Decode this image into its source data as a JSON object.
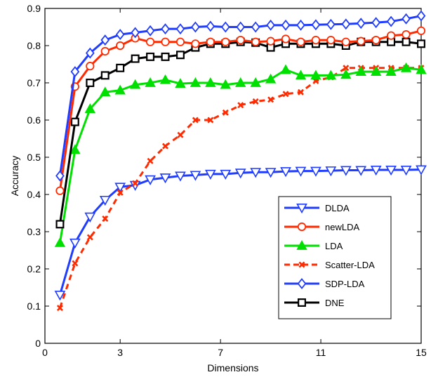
{
  "chart_data": {
    "type": "line",
    "title": "",
    "xlabel": "Dimensions",
    "ylabel": "Accuracy",
    "xlim": [
      0,
      15
    ],
    "ylim": [
      0,
      0.9
    ],
    "xticks": [
      0,
      3,
      7,
      11,
      15
    ],
    "yticks": [
      0,
      0.1,
      0.2,
      0.3,
      0.4,
      0.5,
      0.6,
      0.7,
      0.8,
      0.9
    ],
    "grid": false,
    "legend_position": "lower-right",
    "x": [
      0.6,
      1.2,
      1.8,
      2.4,
      3.0,
      3.6,
      4.2,
      4.8,
      5.4,
      6.0,
      6.6,
      7.2,
      7.8,
      8.4,
      9.0,
      9.6,
      10.2,
      10.8,
      11.4,
      12.0,
      12.6,
      13.2,
      13.8,
      14.4,
      15.0
    ],
    "series": [
      {
        "name": "DLDA",
        "color": "#1f3cff",
        "line_style": "solid",
        "marker": "triangle-down",
        "marker_fill": "#1f3cff",
        "values": [
          0.13,
          0.27,
          0.34,
          0.385,
          0.42,
          0.425,
          0.44,
          0.445,
          0.45,
          0.452,
          0.455,
          0.455,
          0.458,
          0.46,
          0.46,
          0.462,
          0.463,
          0.463,
          0.464,
          0.465,
          0.465,
          0.466,
          0.466,
          0.466,
          0.467
        ]
      },
      {
        "name": "newLDA",
        "color": "#ff2a00",
        "line_style": "solid",
        "marker": "circle",
        "marker_fill": "none",
        "values": [
          0.41,
          0.69,
          0.745,
          0.785,
          0.8,
          0.82,
          0.81,
          0.81,
          0.81,
          0.805,
          0.81,
          0.81,
          0.815,
          0.81,
          0.812,
          0.818,
          0.81,
          0.815,
          0.815,
          0.81,
          0.812,
          0.815,
          0.827,
          0.83,
          0.84
        ]
      },
      {
        "name": "LDA",
        "color": "#00e000",
        "line_style": "solid",
        "marker": "triangle-up",
        "marker_fill": "#00e000",
        "values": [
          0.27,
          0.52,
          0.63,
          0.675,
          0.68,
          0.695,
          0.7,
          0.708,
          0.698,
          0.7,
          0.7,
          0.695,
          0.7,
          0.7,
          0.71,
          0.735,
          0.72,
          0.72,
          0.72,
          0.722,
          0.73,
          0.73,
          0.73,
          0.74,
          0.735
        ]
      },
      {
        "name": "Scatter-LDA",
        "color": "#ff2a00",
        "line_style": "dashed",
        "marker": "x",
        "marker_fill": "#ff2a00",
        "values": [
          0.095,
          0.215,
          0.285,
          0.335,
          0.405,
          0.43,
          0.49,
          0.53,
          0.56,
          0.6,
          0.6,
          0.62,
          0.64,
          0.65,
          0.655,
          0.67,
          0.675,
          0.705,
          0.715,
          0.74,
          0.74,
          0.74,
          0.74,
          0.74,
          0.74
        ]
      },
      {
        "name": "SDP-LDA",
        "color": "#1f3cff",
        "line_style": "solid",
        "marker": "diamond",
        "marker_fill": "#1f3cff",
        "values": [
          0.45,
          0.73,
          0.78,
          0.815,
          0.83,
          0.835,
          0.84,
          0.845,
          0.845,
          0.85,
          0.852,
          0.85,
          0.85,
          0.85,
          0.855,
          0.855,
          0.855,
          0.856,
          0.857,
          0.858,
          0.86,
          0.862,
          0.865,
          0.872,
          0.88
        ]
      },
      {
        "name": "DNE",
        "color": "#000000",
        "line_style": "solid",
        "marker": "square",
        "marker_fill": "#000000",
        "values": [
          0.32,
          0.595,
          0.7,
          0.72,
          0.74,
          0.765,
          0.77,
          0.77,
          0.775,
          0.795,
          0.805,
          0.805,
          0.81,
          0.808,
          0.795,
          0.805,
          0.805,
          0.805,
          0.805,
          0.8,
          0.81,
          0.81,
          0.81,
          0.81,
          0.805
        ]
      }
    ]
  }
}
